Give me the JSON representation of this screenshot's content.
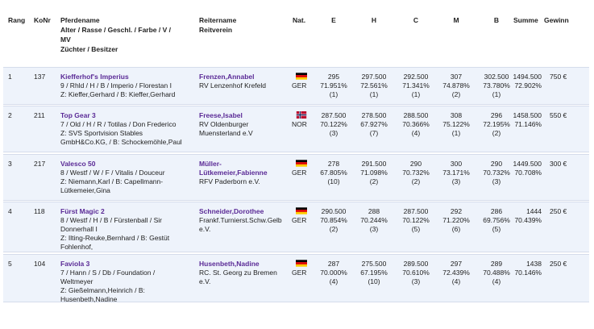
{
  "table": {
    "header": {
      "rank": "Rang",
      "konr": "KoNr",
      "horse": [
        "Pferdename",
        "Alter / Rasse / Geschl. / Farbe / V /",
        "MV",
        "Züchter / Besitzer"
      ],
      "rider": [
        "Reitername",
        "Reitverein"
      ],
      "nat": "Nat.",
      "judges": [
        "E",
        "H",
        "C",
        "M",
        "B"
      ],
      "total": "Summe",
      "prize": "Gewinn"
    },
    "rows": [
      {
        "rank": "1",
        "konr": "137",
        "horse": "Kiefferhof's Imperius",
        "horse_info": [
          "9 / Rhld / H / B / Imperio / Florestan I",
          "Z: Kieffer,Gerhard / B: Kieffer,Gerhard"
        ],
        "rider": [
          "Frenzen,Annabel"
        ],
        "club": [
          "RV Lenzenhof Krefeld"
        ],
        "nat": "GER",
        "scores": [
          {
            "points": "295",
            "percent": "71.951%",
            "place": "(1)"
          },
          {
            "points": "297.500",
            "percent": "72.561%",
            "place": "(1)"
          },
          {
            "points": "292.500",
            "percent": "71.341%",
            "place": "(1)"
          },
          {
            "points": "307",
            "percent": "74.878%",
            "place": "(2)"
          },
          {
            "points": "302.500",
            "percent": "73.780%",
            "place": "(1)"
          }
        ],
        "total": {
          "points": "1494.500",
          "percent": "72.902%"
        },
        "prize": "750 €"
      },
      {
        "rank": "2",
        "konr": "211",
        "horse": "Top Gear 3",
        "horse_info": [
          "7 / Old / H / R / Totilas / Don Frederico",
          "Z: SVS Sportvision Stables",
          "GmbH&Co.KG, / B: Schockemöhle,Paul"
        ],
        "rider": [
          "Freese,Isabel"
        ],
        "club": [
          "RV Oldenburger",
          "Muensterland e.V"
        ],
        "nat": "NOR",
        "scores": [
          {
            "points": "287.500",
            "percent": "70.122%",
            "place": "(3)"
          },
          {
            "points": "278.500",
            "percent": "67.927%",
            "place": "(7)"
          },
          {
            "points": "288.500",
            "percent": "70.366%",
            "place": "(4)"
          },
          {
            "points": "308",
            "percent": "75.122%",
            "place": "(1)"
          },
          {
            "points": "296",
            "percent": "72.195%",
            "place": "(2)"
          }
        ],
        "total": {
          "points": "1458.500",
          "percent": "71.146%"
        },
        "prize": "550 €"
      },
      {
        "rank": "3",
        "konr": "217",
        "horse": "Valesco 50",
        "horse_info": [
          "8 / Westf / W / F / Vitalis / Douceur",
          "Z: Niemann,Karl / B: Capellmann-",
          "Lütkemeier,Gina"
        ],
        "rider": [
          "Müller-",
          "Lütkemeier,Fabienne"
        ],
        "club": [
          "RFV Paderborn e.V."
        ],
        "nat": "GER",
        "scores": [
          {
            "points": "278",
            "percent": "67.805%",
            "place": "(10)"
          },
          {
            "points": "291.500",
            "percent": "71.098%",
            "place": "(2)"
          },
          {
            "points": "290",
            "percent": "70.732%",
            "place": "(2)"
          },
          {
            "points": "300",
            "percent": "73.171%",
            "place": "(3)"
          },
          {
            "points": "290",
            "percent": "70.732%",
            "place": "(3)"
          }
        ],
        "total": {
          "points": "1449.500",
          "percent": "70.708%"
        },
        "prize": "300 €"
      },
      {
        "rank": "4",
        "konr": "118",
        "horse": "Fürst Magic 2",
        "horse_info": [
          "8 / Westf / H / B / Fürstenball / Sir",
          "Donnerhall I",
          "Z: Ilting-Reuke,Bernhard / B: Gestüt",
          "Fohlenhof,"
        ],
        "rider": [
          "Schneider,Dorothee"
        ],
        "club": [
          "Frankf.Turnierst.Schw.Gelb",
          "e.V."
        ],
        "nat": "GER",
        "scores": [
          {
            "points": "290.500",
            "percent": "70.854%",
            "place": "(2)"
          },
          {
            "points": "288",
            "percent": "70.244%",
            "place": "(3)"
          },
          {
            "points": "287.500",
            "percent": "70.122%",
            "place": "(5)"
          },
          {
            "points": "292",
            "percent": "71.220%",
            "place": "(6)"
          },
          {
            "points": "286",
            "percent": "69.756%",
            "place": "(5)"
          }
        ],
        "total": {
          "points": "1444",
          "percent": "70.439%"
        },
        "prize": "250 €"
      },
      {
        "rank": "5",
        "konr": "104",
        "horse": "Faviola 3",
        "horse_info": [
          "7 / Hann / S / Db / Foundation /",
          "Weltmeyer",
          "Z: Gießelmann,Heinrich / B:",
          "Husenbeth,Nadine"
        ],
        "rider": [
          "Husenbeth,Nadine"
        ],
        "club": [
          "RC. St. Georg zu Bremen",
          "e.V."
        ],
        "nat": "GER",
        "scores": [
          {
            "points": "287",
            "percent": "70.000%",
            "place": "(4)"
          },
          {
            "points": "275.500",
            "percent": "67.195%",
            "place": "(10)"
          },
          {
            "points": "289.500",
            "percent": "70.610%",
            "place": "(3)"
          },
          {
            "points": "297",
            "percent": "72.439%",
            "place": "(4)"
          },
          {
            "points": "289",
            "percent": "70.488%",
            "place": "(4)"
          }
        ],
        "total": {
          "points": "1438",
          "percent": "70.146%"
        },
        "prize": "250 €"
      }
    ]
  }
}
